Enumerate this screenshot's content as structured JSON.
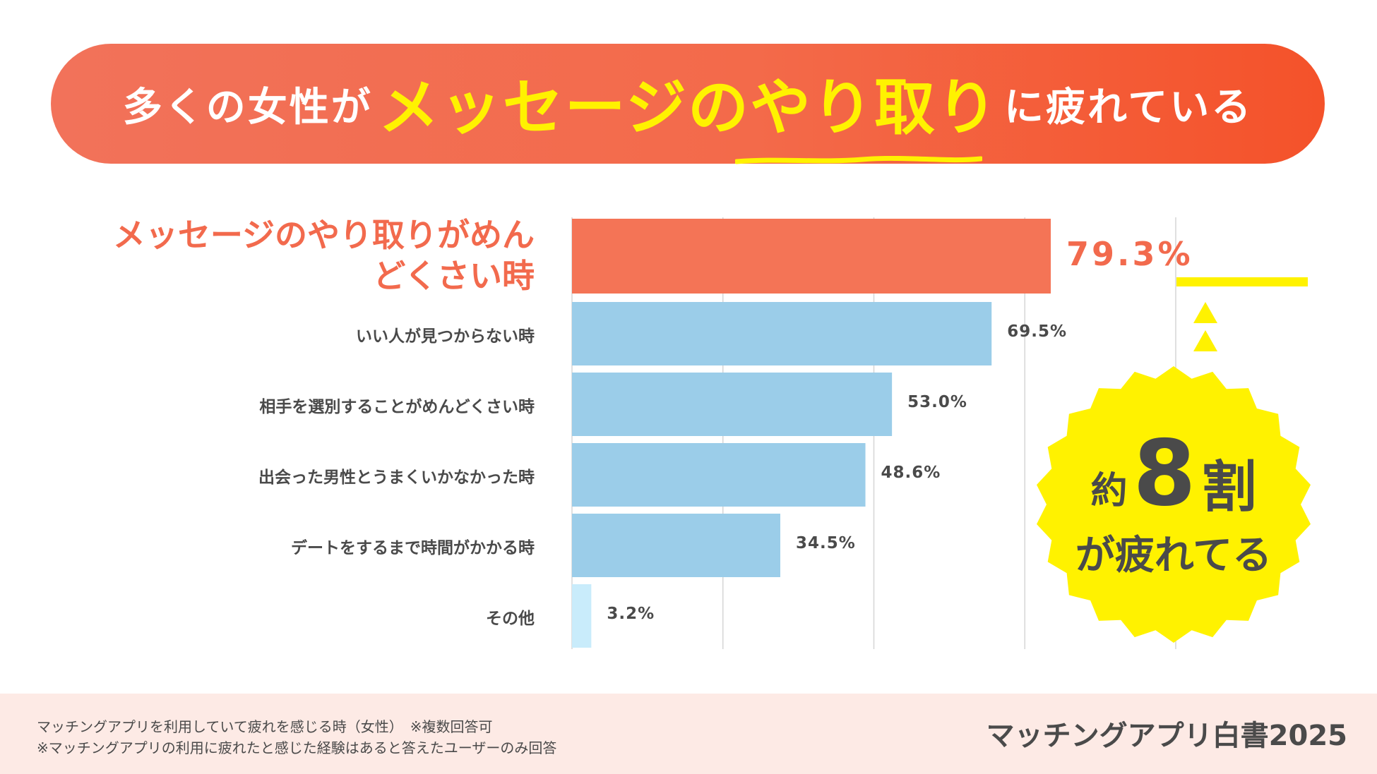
{
  "header": {
    "title_part1": "多くの女性が",
    "title_highlight": "メッセージのやり取り",
    "title_part2": "に疲れている"
  },
  "chart_data": {
    "type": "bar",
    "orientation": "horizontal",
    "categories": [
      "メッセージのやり取りがめんどくさい時",
      "いい人が見つからない時",
      "相手を選別することがめんどくさい時",
      "出会った男性とうまくいかなかった時",
      "デートをするまで時間がかかる時",
      "その他"
    ],
    "values": [
      79.3,
      69.5,
      53.0,
      48.6,
      34.5,
      3.2
    ],
    "value_labels": [
      "79.3%",
      "69.5%",
      "53.0%",
      "48.6%",
      "34.5%",
      "3.2%"
    ],
    "highlight_index": 0,
    "xlim": [
      0,
      100
    ],
    "grid": true,
    "colors": {
      "highlight": "#f47456",
      "bar": "#9bcde9",
      "other": "#c9ecfb",
      "grid": "#d6d6d6"
    }
  },
  "badge": {
    "prefix": "約",
    "number": "8",
    "suffix": "割",
    "line2": "が疲れてる",
    "color": "#fff200"
  },
  "footer": {
    "note1": "マッチングアプリを利用していて疲れを感じる時（女性）　※複数回答可",
    "note2": "※マッチングアプリの利用に疲れたと感じた経験はあると答えたユーザーのみ回答",
    "brand": "マッチングアプリ白書2025"
  }
}
